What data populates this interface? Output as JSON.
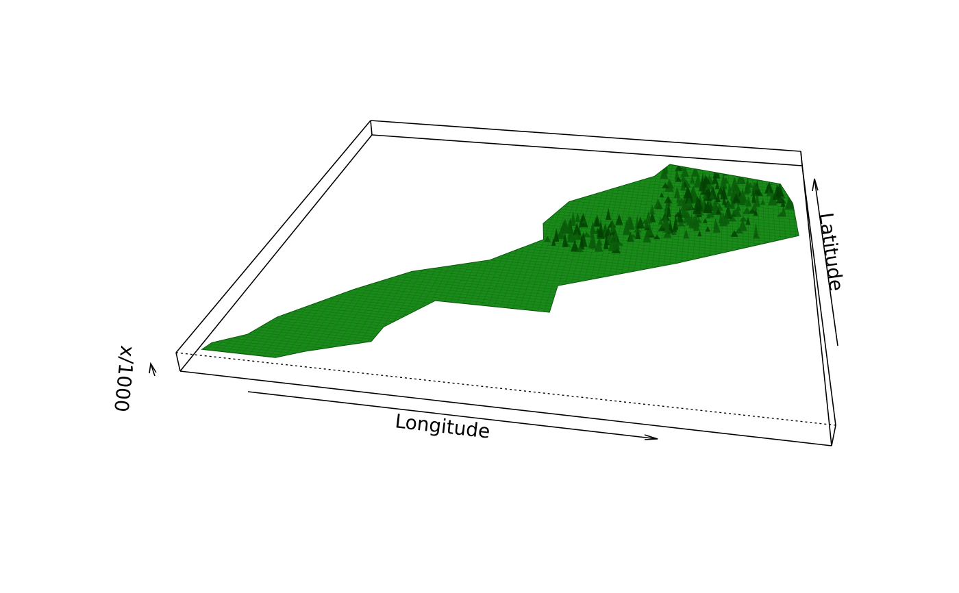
{
  "chart_data": {
    "type": "surface-3d",
    "xlabel": "Longitude",
    "ylabel": "Latitude",
    "zlabel": "x/1000",
    "surface_color": "#1a8a1a",
    "surface_edge_color": "#0b5a0b",
    "shadow_color": "#034003",
    "box_color": "#000000",
    "region_outline_lonlat": [
      [
        -17.1,
        21.3
      ],
      [
        -15.2,
        21.3
      ],
      [
        -14.6,
        21.9
      ],
      [
        -13.1,
        23.0
      ],
      [
        -13.0,
        24.0
      ],
      [
        -12.0,
        26.0
      ],
      [
        -8.7,
        26.0
      ],
      [
        -8.7,
        27.7
      ],
      [
        -5.2,
        29.8
      ],
      [
        -1.2,
        32.1
      ],
      [
        -1.3,
        34.0
      ],
      [
        -1.7,
        35.1
      ],
      [
        -2.9,
        35.3
      ],
      [
        -5.9,
        35.8
      ],
      [
        -6.4,
        35.0
      ],
      [
        -9.2,
        33.0
      ],
      [
        -9.8,
        31.5
      ],
      [
        -9.6,
        30.5
      ],
      [
        -11.0,
        28.9
      ],
      [
        -13.1,
        27.7
      ],
      [
        -14.4,
        26.2
      ],
      [
        -15.9,
        23.9
      ],
      [
        -16.3,
        22.6
      ],
      [
        -17.0,
        21.8
      ]
    ],
    "relief_peaks_lonlat": [
      [
        -7.9,
        31.1
      ],
      [
        -5.0,
        33.2
      ],
      [
        -4.2,
        33.5
      ],
      [
        -6.5,
        31.4
      ],
      [
        -4.9,
        34.8
      ],
      [
        -3.8,
        32.4
      ],
      [
        -5.7,
        32.0
      ],
      [
        -2.6,
        33.8
      ],
      [
        -8.3,
        30.6
      ],
      [
        -3.3,
        34.3
      ]
    ]
  }
}
